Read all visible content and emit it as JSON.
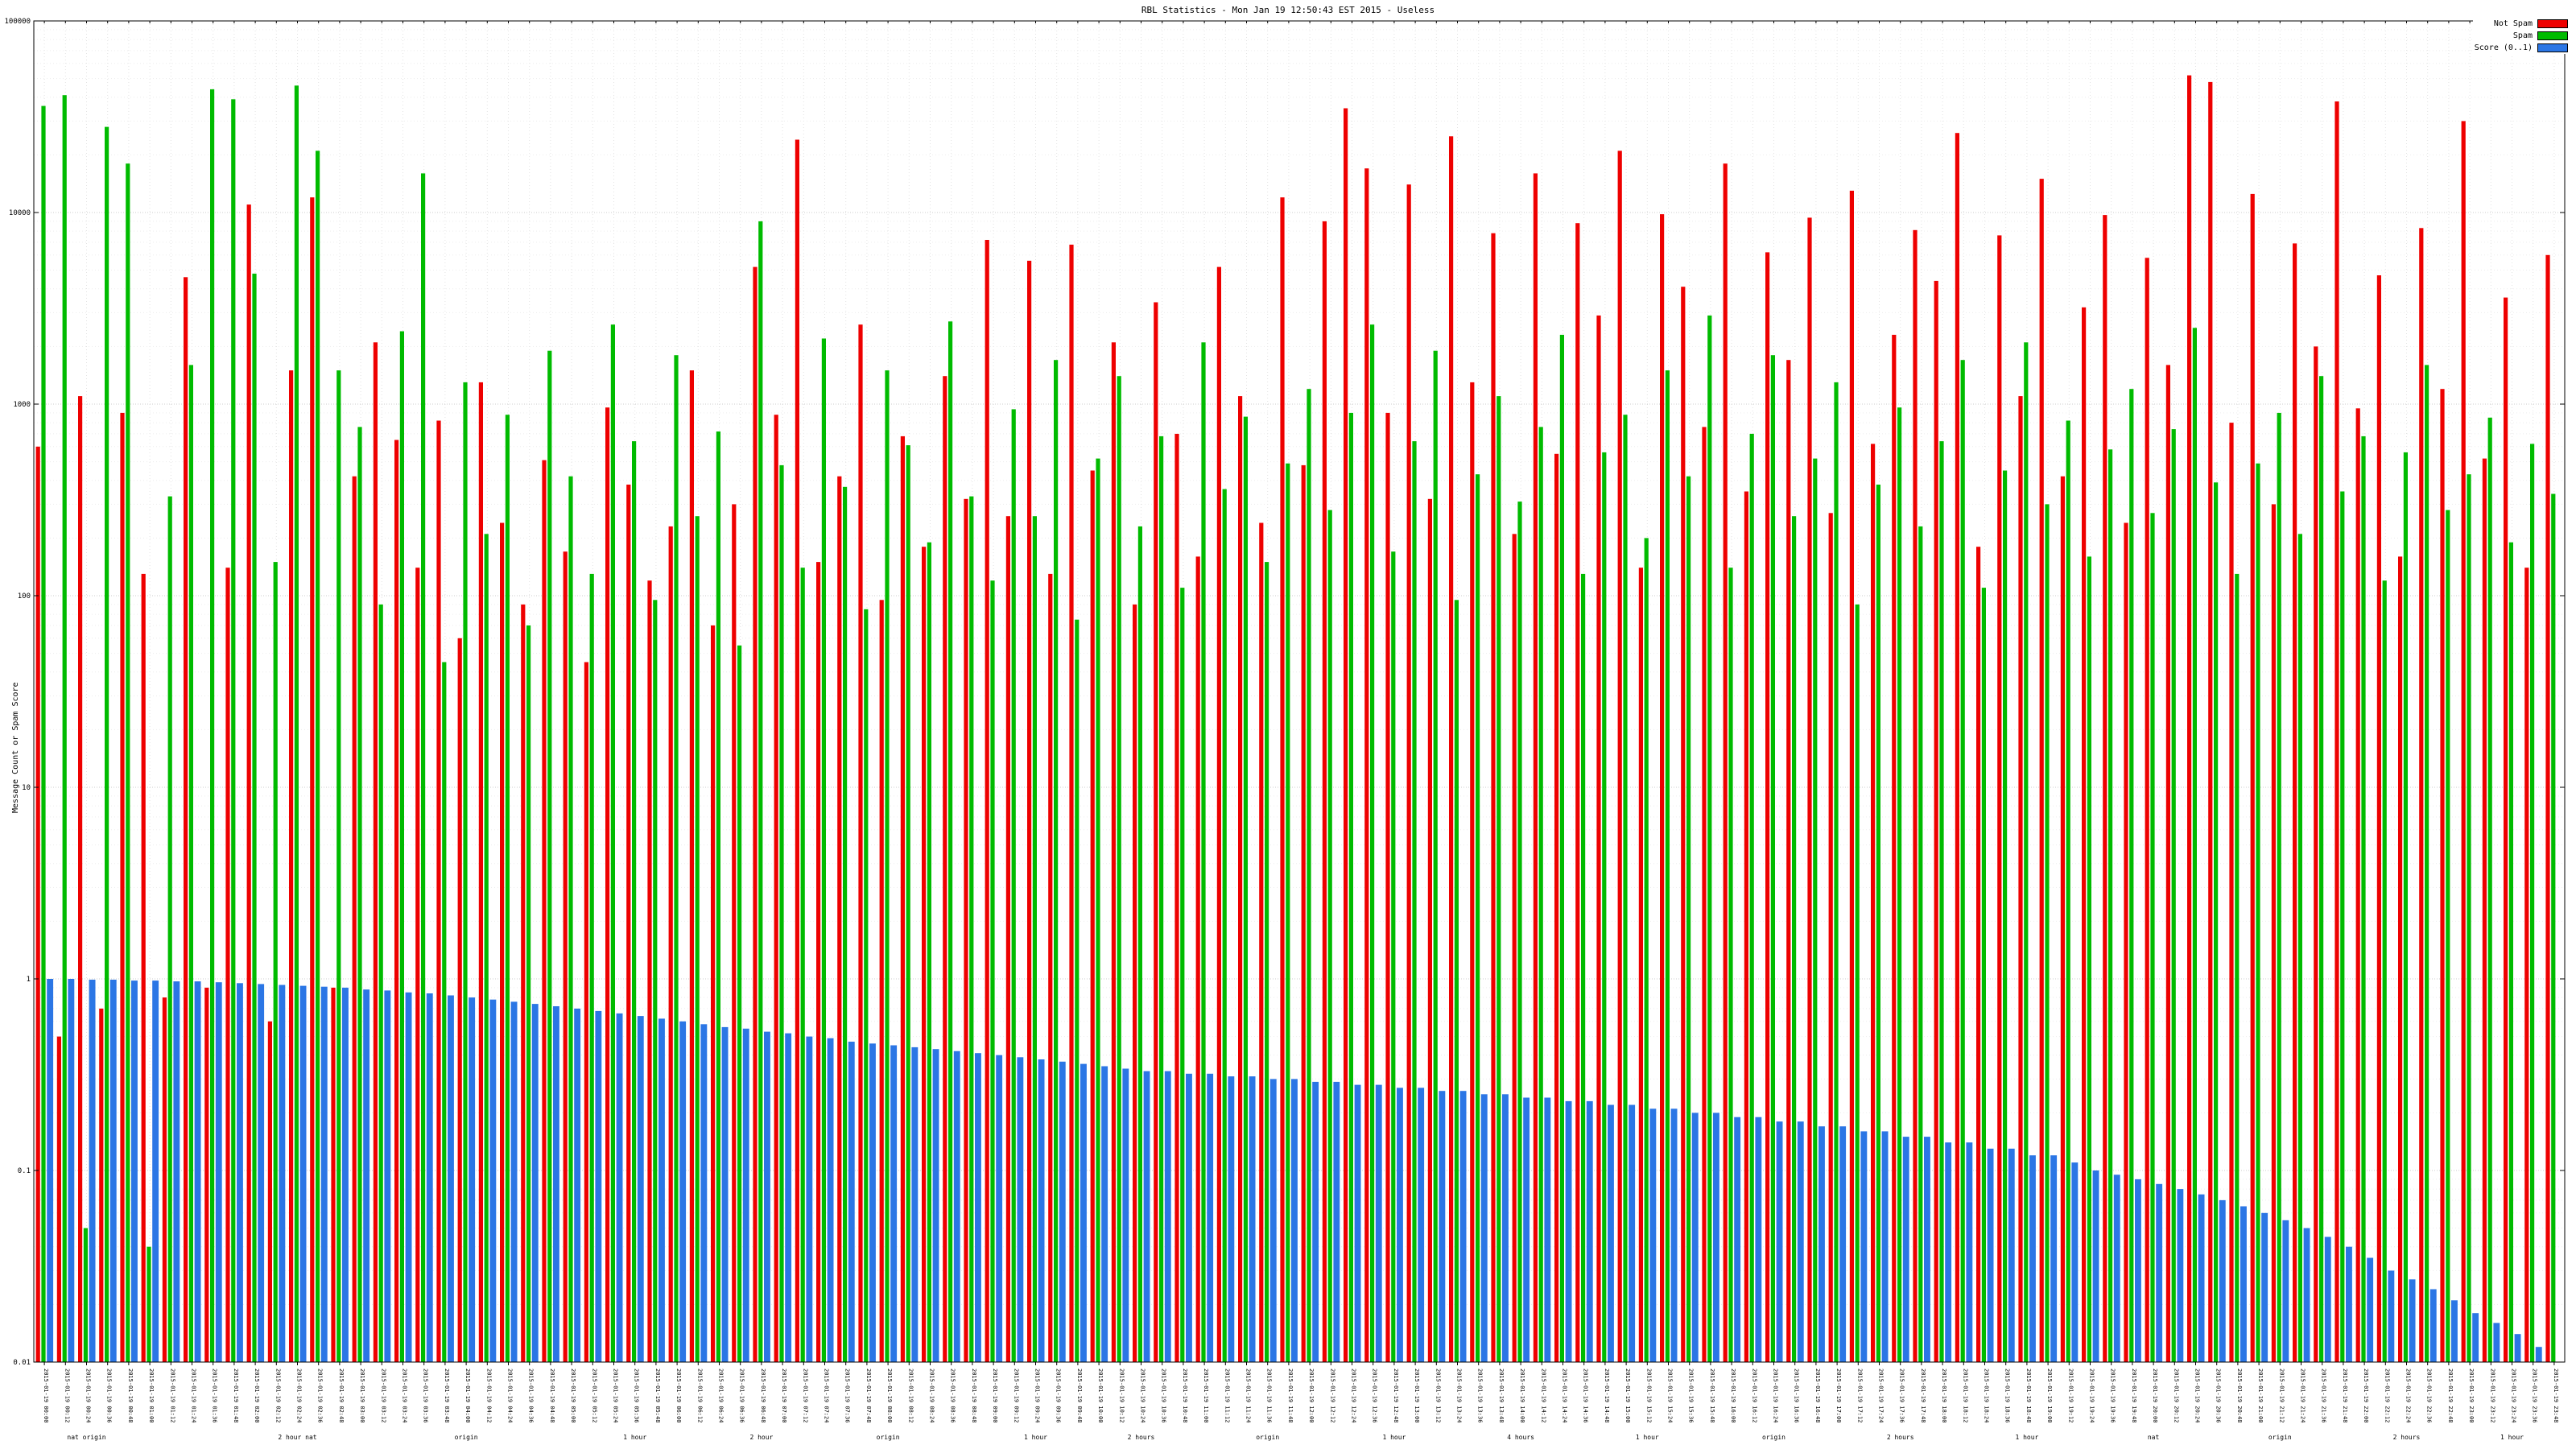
{
  "page": {
    "title": "RBL Statistics - Mon Jan 19 12:50:43 EST 2015 - Useless"
  },
  "chart_data": {
    "type": "bar",
    "title": "RBL Statistics - Mon Jan 19 12:50:43 EST 2015 - Useless",
    "ylabel": "Message Count or Spam Score",
    "y_scale": "log",
    "ylim": [
      0.01,
      100000
    ],
    "y_ticks": [
      0.01,
      0.1,
      1,
      10,
      100,
      1000,
      10000,
      100000
    ],
    "grid": "dotted",
    "legend": {
      "position": "top-right",
      "items": [
        {
          "label": "Not Spam",
          "color": "#ee0000"
        },
        {
          "label": "Spam",
          "color": "#00bb00"
        },
        {
          "label": "Score (0..1)",
          "color": "#2b76e5"
        }
      ]
    },
    "x_label_prefix": "2015-01-19",
    "categories": [
      "00:00",
      "00:12",
      "00:24",
      "00:36",
      "00:48",
      "01:00",
      "01:12",
      "01:24",
      "01:36",
      "01:48",
      "02:00",
      "02:12",
      "02:24",
      "02:36",
      "02:48",
      "03:00",
      "03:12",
      "03:24",
      "03:36",
      "03:48",
      "04:00",
      "04:12",
      "04:24",
      "04:36",
      "04:48",
      "05:00",
      "05:12",
      "05:24",
      "05:36",
      "05:48",
      "06:00",
      "06:12",
      "06:24",
      "06:36",
      "06:48",
      "07:00",
      "07:12",
      "07:24",
      "07:36",
      "07:48",
      "08:00",
      "08:12",
      "08:24",
      "08:36",
      "08:48",
      "09:00",
      "09:12",
      "09:24",
      "09:36",
      "09:48",
      "10:00",
      "10:12",
      "10:24",
      "10:36",
      "10:48",
      "11:00",
      "11:12",
      "11:24",
      "11:36",
      "11:48",
      "12:00",
      "12:12",
      "12:24",
      "12:36",
      "12:48",
      "13:00",
      "13:12",
      "13:24",
      "13:36",
      "13:48",
      "14:00",
      "14:12",
      "14:24",
      "14:36",
      "14:48",
      "15:00",
      "15:12",
      "15:24",
      "15:36",
      "15:48",
      "16:00",
      "16:12",
      "16:24",
      "16:36",
      "16:48",
      "17:00",
      "17:12",
      "17:24",
      "17:36",
      "17:48",
      "18:00",
      "18:12",
      "18:24",
      "18:36",
      "18:48",
      "19:00",
      "19:12",
      "19:24",
      "19:36",
      "19:48",
      "20:00",
      "20:12",
      "20:24",
      "20:36",
      "20:48",
      "21:00",
      "21:12",
      "21:24",
      "21:36",
      "21:48",
      "22:00",
      "22:12",
      "22:24",
      "22:36",
      "22:48",
      "23:00",
      "23:12",
      "23:24",
      "23:36",
      "23:48"
    ],
    "sublabels": [
      {
        "i": 2,
        "text": "nat origin"
      },
      {
        "i": 12,
        "text": "2 hour nat"
      },
      {
        "i": 20,
        "text": "origin"
      },
      {
        "i": 28,
        "text": "1 hour"
      },
      {
        "i": 34,
        "text": "2 hour"
      },
      {
        "i": 40,
        "text": "origin"
      },
      {
        "i": 47,
        "text": "1 hour"
      },
      {
        "i": 52,
        "text": "2 hours"
      },
      {
        "i": 58,
        "text": "origin"
      },
      {
        "i": 64,
        "text": "1 hour"
      },
      {
        "i": 70,
        "text": "4 hours"
      },
      {
        "i": 76,
        "text": "1 hour"
      },
      {
        "i": 82,
        "text": "origin"
      },
      {
        "i": 88,
        "text": "2 hours"
      },
      {
        "i": 94,
        "text": "1 hour"
      },
      {
        "i": 100,
        "text": "nat"
      },
      {
        "i": 106,
        "text": "origin"
      },
      {
        "i": 112,
        "text": "2 hours"
      },
      {
        "i": 117,
        "text": "1 hour"
      }
    ],
    "series": [
      {
        "name": "Not Spam",
        "color": "#ee0000",
        "values": [
          600,
          0.5,
          1100,
          0.7,
          900,
          130,
          0.8,
          4600,
          0.9,
          140,
          11000,
          0.6,
          1500,
          12000,
          0.9,
          420,
          2100,
          650,
          140,
          820,
          60,
          1300,
          240,
          90,
          510,
          170,
          45,
          960,
          380,
          120,
          230,
          1500,
          70,
          300,
          5200,
          880,
          24000,
          150,
          420,
          2600,
          95,
          680,
          180,
          1400,
          320,
          7200,
          260,
          5600,
          130,
          6800,
          450,
          2100,
          90,
          3400,
          700,
          160,
          5200,
          1100,
          240,
          12000,
          480,
          9000,
          35000,
          17000,
          900,
          14000,
          320,
          25000,
          1300,
          7800,
          210,
          16000,
          550,
          8800,
          2900,
          21000,
          140,
          9800,
          4100,
          760,
          18000,
          350,
          6200,
          1700,
          9400,
          270,
          13000,
          620,
          2300,
          8100,
          4400,
          26000,
          180,
          7600,
          1100,
          15000,
          420,
          3200,
          9700,
          240,
          5800,
          1600,
          52000,
          48000,
          800,
          12500,
          300,
          6900,
          2000,
          38000,
          950,
          4700,
          160,
          8300,
          1200,
          30000,
          520,
          3600,
          140,
          6000
        ]
      },
      {
        "name": "Spam",
        "color": "#00bb00",
        "values": [
          36000,
          41000,
          0.05,
          28000,
          18000,
          0.04,
          330,
          1600,
          44000,
          39000,
          4800,
          150,
          46000,
          21000,
          1500,
          760,
          90,
          2400,
          16000,
          45,
          1300,
          210,
          880,
          70,
          1900,
          420,
          130,
          2600,
          640,
          95,
          1800,
          260,
          720,
          55,
          9000,
          480,
          140,
          2200,
          370,
          85,
          1500,
          610,
          190,
          2700,
          330,
          120,
          940,
          260,
          1700,
          75,
          520,
          1400,
          230,
          680,
          110,
          2100,
          360,
          860,
          150,
          490,
          1200,
          280,
          900,
          2600,
          170,
          640,
          1900,
          95,
          430,
          1100,
          310,
          760,
          2300,
          130,
          560,
          880,
          200,
          1500,
          420,
          2900,
          140,
          700,
          1800,
          260,
          520,
          1300,
          90,
          380,
          960,
          230,
          640,
          1700,
          110,
          450,
          2100,
          300,
          820,
          160,
          580,
          1200,
          270,
          740,
          2500,
          390,
          130,
          490,
          900,
          210,
          1400,
          350,
          680,
          120,
          560,
          1600,
          280,
          430,
          850,
          190,
          620,
          340
        ]
      },
      {
        "name": "Score (0..1)",
        "color": "#2b76e5",
        "values": [
          1.0,
          1.0,
          0.99,
          0.99,
          0.98,
          0.98,
          0.97,
          0.97,
          0.96,
          0.95,
          0.94,
          0.93,
          0.92,
          0.91,
          0.9,
          0.88,
          0.87,
          0.85,
          0.84,
          0.82,
          0.8,
          0.78,
          0.76,
          0.74,
          0.72,
          0.7,
          0.68,
          0.66,
          0.64,
          0.62,
          0.6,
          0.58,
          0.56,
          0.55,
          0.53,
          0.52,
          0.5,
          0.49,
          0.47,
          0.46,
          0.45,
          0.44,
          0.43,
          0.42,
          0.41,
          0.4,
          0.39,
          0.38,
          0.37,
          0.36,
          0.35,
          0.34,
          0.33,
          0.33,
          0.32,
          0.32,
          0.31,
          0.31,
          0.3,
          0.3,
          0.29,
          0.29,
          0.28,
          0.28,
          0.27,
          0.27,
          0.26,
          0.26,
          0.25,
          0.25,
          0.24,
          0.24,
          0.23,
          0.23,
          0.22,
          0.22,
          0.21,
          0.21,
          0.2,
          0.2,
          0.19,
          0.19,
          0.18,
          0.18,
          0.17,
          0.17,
          0.16,
          0.16,
          0.15,
          0.15,
          0.14,
          0.14,
          0.13,
          0.13,
          0.12,
          0.12,
          0.11,
          0.1,
          0.095,
          0.09,
          0.085,
          0.08,
          0.075,
          0.07,
          0.065,
          0.06,
          0.055,
          0.05,
          0.045,
          0.04,
          0.035,
          0.03,
          0.027,
          0.024,
          0.021,
          0.018,
          0.016,
          0.014,
          0.012,
          0.01
        ]
      }
    ]
  }
}
